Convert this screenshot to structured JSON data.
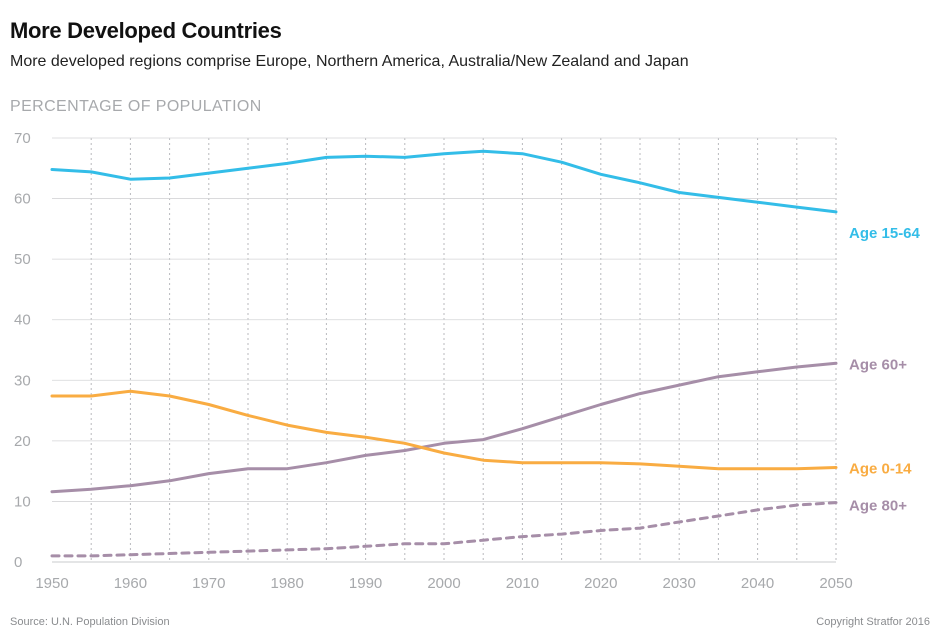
{
  "header": {
    "title": "More Developed Countries",
    "subtitle": "More developed regions comprise Europe, Northern America, Australia/New Zealand and Japan"
  },
  "footer": {
    "source": "Source: U.N. Population Division",
    "copyright": "Copyright Stratfor 2016"
  },
  "chart_data": {
    "type": "line",
    "title": "More Developed Countries",
    "ylabel": "PERCENTAGE OF POPULATION",
    "xlabel": "",
    "xlim": [
      1950,
      2050
    ],
    "ylim": [
      0,
      70
    ],
    "x_ticks": [
      1950,
      1960,
      1970,
      1980,
      1990,
      2000,
      2010,
      2020,
      2030,
      2040,
      2050
    ],
    "y_ticks": [
      0,
      10,
      20,
      30,
      40,
      50,
      60,
      70
    ],
    "grid": "vertical-dotted",
    "legend": "inline-right",
    "x": [
      1950,
      1955,
      1960,
      1965,
      1970,
      1975,
      1980,
      1985,
      1990,
      1995,
      2000,
      2005,
      2010,
      2015,
      2020,
      2025,
      2030,
      2035,
      2040,
      2045,
      2050
    ],
    "series": [
      {
        "name": "Age 15-64",
        "color": "#33bde8",
        "dash": false,
        "values": [
          64.8,
          64.4,
          63.2,
          63.4,
          64.2,
          65.0,
          65.8,
          66.8,
          67.0,
          66.8,
          67.4,
          67.8,
          67.4,
          66.0,
          64.0,
          62.6,
          61.0,
          60.2,
          59.4,
          58.6,
          57.8
        ]
      },
      {
        "name": "Age 60+",
        "color": "#a68ea8",
        "dash": false,
        "values": [
          11.6,
          12.0,
          12.6,
          13.4,
          14.6,
          15.4,
          15.4,
          16.4,
          17.6,
          18.4,
          19.6,
          20.2,
          22.0,
          24.0,
          26.0,
          27.8,
          29.2,
          30.6,
          31.4,
          32.2,
          32.8
        ]
      },
      {
        "name": "Age 0-14",
        "color": "#f9ac42",
        "dash": false,
        "values": [
          27.4,
          27.4,
          28.2,
          27.4,
          26.0,
          24.2,
          22.6,
          21.4,
          20.6,
          19.6,
          18.0,
          16.8,
          16.4,
          16.4,
          16.4,
          16.2,
          15.8,
          15.4,
          15.4,
          15.4,
          15.6
        ]
      },
      {
        "name": "Age 80+",
        "color": "#a68ea8",
        "dash": true,
        "values": [
          1.0,
          1.0,
          1.2,
          1.4,
          1.6,
          1.8,
          2.0,
          2.2,
          2.6,
          3.0,
          3.0,
          3.6,
          4.2,
          4.6,
          5.2,
          5.6,
          6.6,
          7.6,
          8.6,
          9.4,
          9.8
        ]
      }
    ]
  }
}
